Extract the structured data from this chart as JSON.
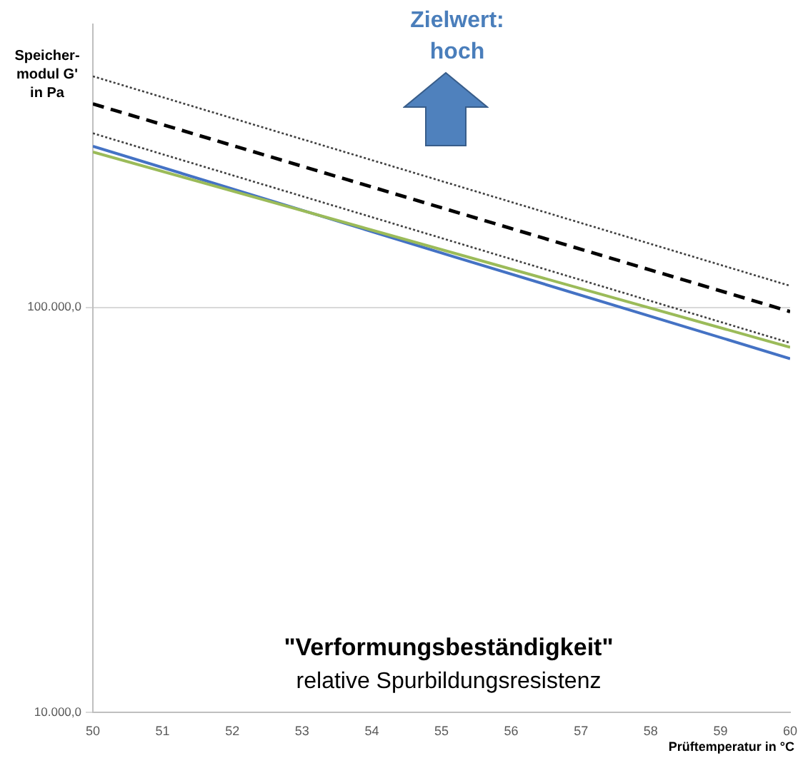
{
  "chart_data": {
    "type": "line",
    "title": "\"Verformungsbeständigkeit\"",
    "subtitle": "relative Spurbildungsresistenz",
    "xlabel": "Prüftemperatur in °C",
    "ylabel": "Speicher-modul G' in Pa",
    "annotations": [
      "Zielwert: hoch"
    ],
    "series": [
      {
        "color": "#404040",
        "line_style": "dotted",
        "x": [
          50,
          60
        ],
        "values": [
          372000,
          113000
        ]
      },
      {
        "color": "#000000",
        "line_style": "dashed",
        "x": [
          50,
          60
        ],
        "values": [
          318000,
          97600
        ]
      },
      {
        "color": "#404040",
        "line_style": "dotted",
        "x": [
          50,
          60
        ],
        "values": [
          269000,
          81700
        ]
      },
      {
        "color": "#9bbb59",
        "line_style": "solid",
        "x": [
          50,
          60
        ],
        "values": [
          242000,
          79700
        ]
      },
      {
        "color": "#4472c4",
        "line_style": "solid",
        "x": [
          50,
          55.2,
          60
        ],
        "values": [
          250000,
          133000,
          74700
        ]
      }
    ],
    "xlim": [
      50,
      60
    ],
    "xticks": [
      50,
      51,
      52,
      53,
      54,
      55,
      56,
      57,
      58,
      59,
      60
    ],
    "ylim": [
      10000,
      500000
    ],
    "yticks": [
      {
        "value": 10000,
        "label": "10.000,0"
      },
      {
        "value": 100000,
        "label": "100.000,0"
      }
    ],
    "log": "y",
    "grid": "y"
  }
}
